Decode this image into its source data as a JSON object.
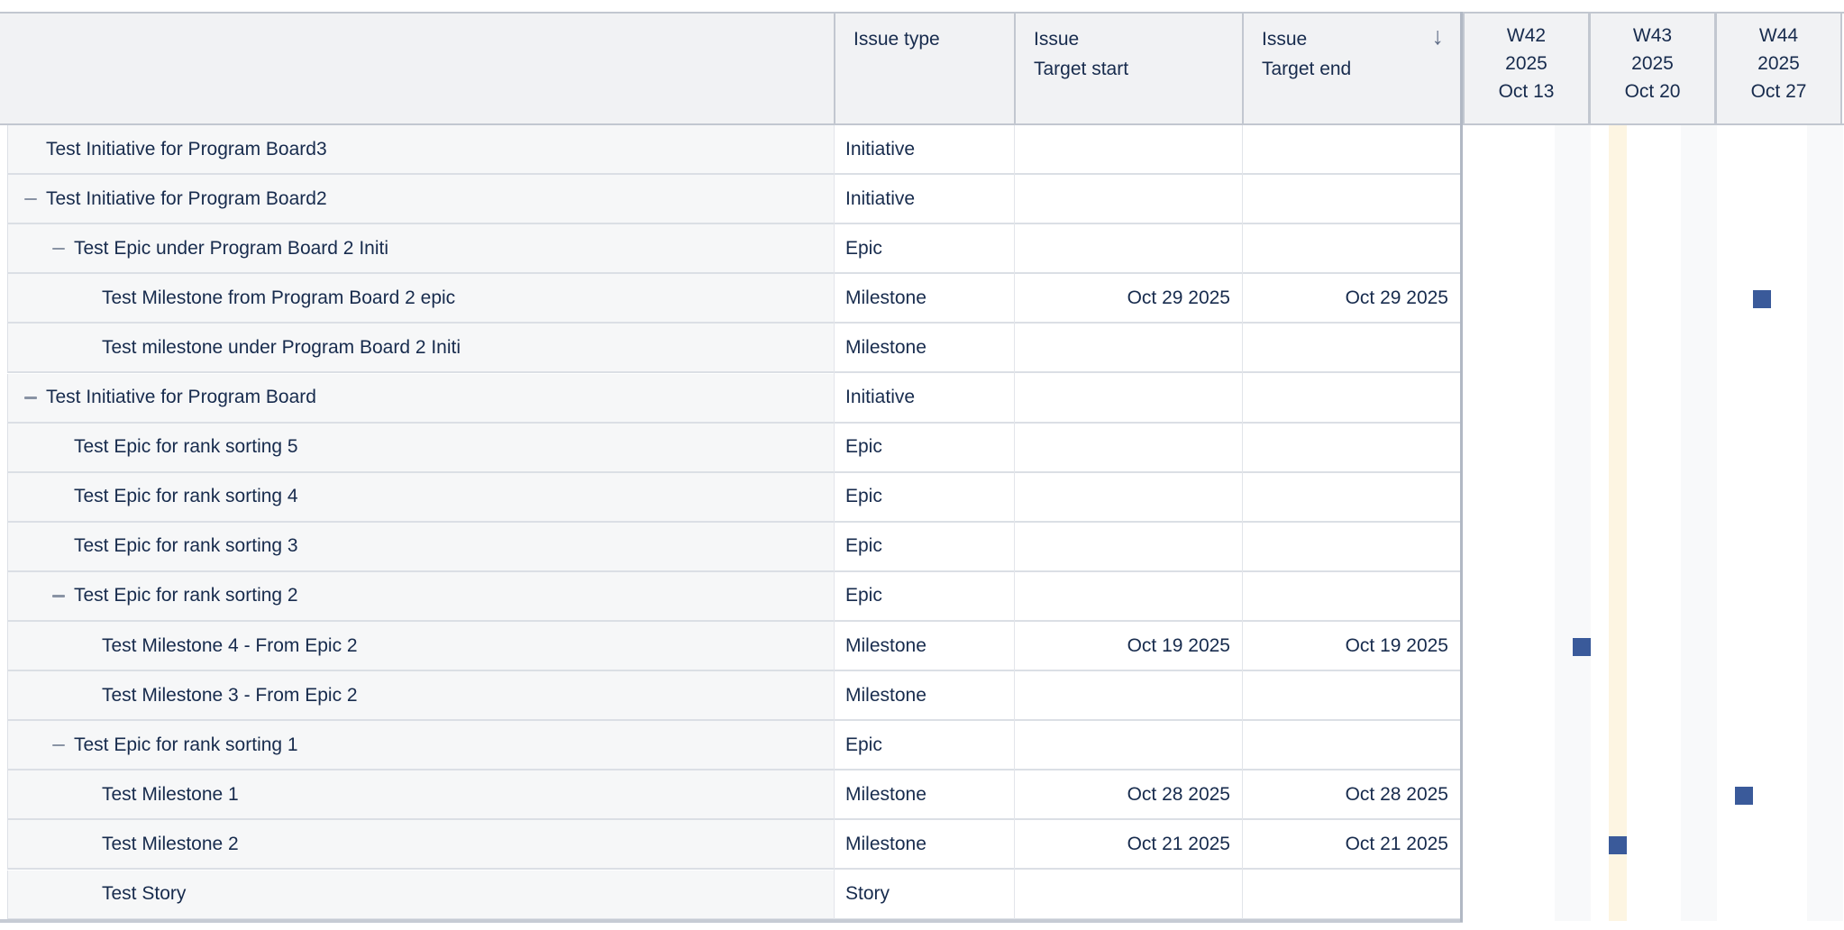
{
  "columns": {
    "name": "",
    "issue_type": "Issue type",
    "target_start": "Issue Target start",
    "target_end": "Issue Target end",
    "sort_icon": "↓"
  },
  "rows": [
    {
      "name": "Test Initiative for Program Board3",
      "level": 0,
      "expander": false,
      "type": "Initiative",
      "start": "",
      "end": ""
    },
    {
      "name": "Test Initiative for Program Board2",
      "level": 0,
      "expander": true,
      "type": "Initiative",
      "start": "",
      "end": ""
    },
    {
      "name": "Test Epic under Program Board 2 Initi",
      "level": 1,
      "expander": true,
      "type": "Epic",
      "start": "",
      "end": ""
    },
    {
      "name": "Test Milestone from Program Board 2 epic",
      "level": 2,
      "expander": false,
      "type": "Milestone",
      "start": "Oct 29 2025",
      "end": "Oct 29 2025",
      "marker_day": 16
    },
    {
      "name": "Test milestone under Program Board 2 Initi",
      "level": 2,
      "expander": false,
      "type": "Milestone",
      "start": "",
      "end": ""
    },
    {
      "name": "Test Initiative for Program Board",
      "level": 0,
      "expander": true,
      "type": "Initiative",
      "start": "",
      "end": ""
    },
    {
      "name": "Test Epic for rank sorting 5",
      "level": 1,
      "expander": false,
      "type": "Epic",
      "start": "",
      "end": ""
    },
    {
      "name": "Test Epic for rank sorting 4",
      "level": 1,
      "expander": false,
      "type": "Epic",
      "start": "",
      "end": ""
    },
    {
      "name": "Test Epic for rank sorting 3",
      "level": 1,
      "expander": false,
      "type": "Epic",
      "start": "",
      "end": ""
    },
    {
      "name": "Test Epic for rank sorting 2",
      "level": 1,
      "expander": true,
      "type": "Epic",
      "start": "",
      "end": ""
    },
    {
      "name": "Test Milestone 4 - From Epic 2",
      "level": 2,
      "expander": false,
      "type": "Milestone",
      "start": "Oct 19 2025",
      "end": "Oct 19 2025",
      "marker_day": 6
    },
    {
      "name": "Test Milestone 3 - From Epic 2",
      "level": 2,
      "expander": false,
      "type": "Milestone",
      "start": "",
      "end": ""
    },
    {
      "name": "Test Epic for rank sorting 1",
      "level": 1,
      "expander": true,
      "type": "Epic",
      "start": "",
      "end": ""
    },
    {
      "name": "Test Milestone 1",
      "level": 2,
      "expander": false,
      "type": "Milestone",
      "start": "Oct 28 2025",
      "end": "Oct 28 2025",
      "marker_day": 15
    },
    {
      "name": "Test Milestone 2",
      "level": 2,
      "expander": false,
      "type": "Milestone",
      "start": "Oct 21 2025",
      "end": "Oct 21 2025",
      "marker_day": 8
    },
    {
      "name": "Test Story",
      "level": 2,
      "expander": false,
      "type": "Story",
      "start": "",
      "end": ""
    }
  ],
  "timeline": {
    "weeks": [
      {
        "week": "W42",
        "year": "2025",
        "start_date": "Oct 13"
      },
      {
        "week": "W43",
        "year": "2025",
        "start_date": "Oct 20"
      },
      {
        "week": "W44",
        "year": "2025",
        "start_date": "Oct 27"
      }
    ],
    "today_day_index": 8,
    "weekend_day_indexes": [
      5,
      6,
      12,
      13,
      19,
      20
    ]
  },
  "colors": {
    "header_bg": "#f1f2f4",
    "name_cell_bg": "#f6f7f8",
    "marker": "#3a5a9a",
    "today_highlight": "#fdf5e2",
    "weekend": "#f8f9fa",
    "text": "#172b4d"
  }
}
